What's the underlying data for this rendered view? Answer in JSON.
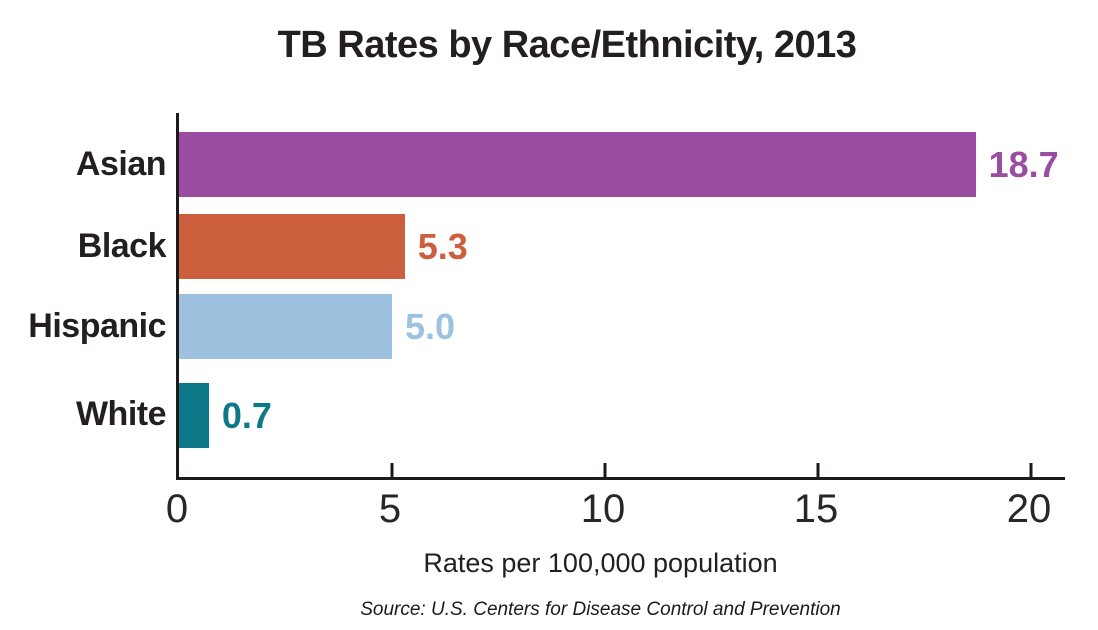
{
  "chart_data": {
    "type": "bar",
    "orientation": "horizontal",
    "title": "TB Rates by Race/Ethnicity, 2013",
    "categories": [
      "Asian",
      "Black",
      "Hispanic",
      "White"
    ],
    "values": [
      18.7,
      5.3,
      5.0,
      0.7
    ],
    "value_labels": [
      "18.7",
      "5.3",
      "5.0",
      "0.7"
    ],
    "bar_colors": [
      "#9a4da0",
      "#cb5f3e",
      "#9dc1df",
      "#0d7988"
    ],
    "xlabel": "Rates per 100,000 population",
    "source": "Source: U.S. Centers for Disease Control and Prevention",
    "xlim": [
      0,
      20
    ],
    "x_ticks": [
      0,
      5,
      10,
      15,
      20
    ],
    "grid": false,
    "legend": "none",
    "axis_color": "#1d1a1b",
    "text_color": "#231f20",
    "background_color": "#ffffff"
  }
}
